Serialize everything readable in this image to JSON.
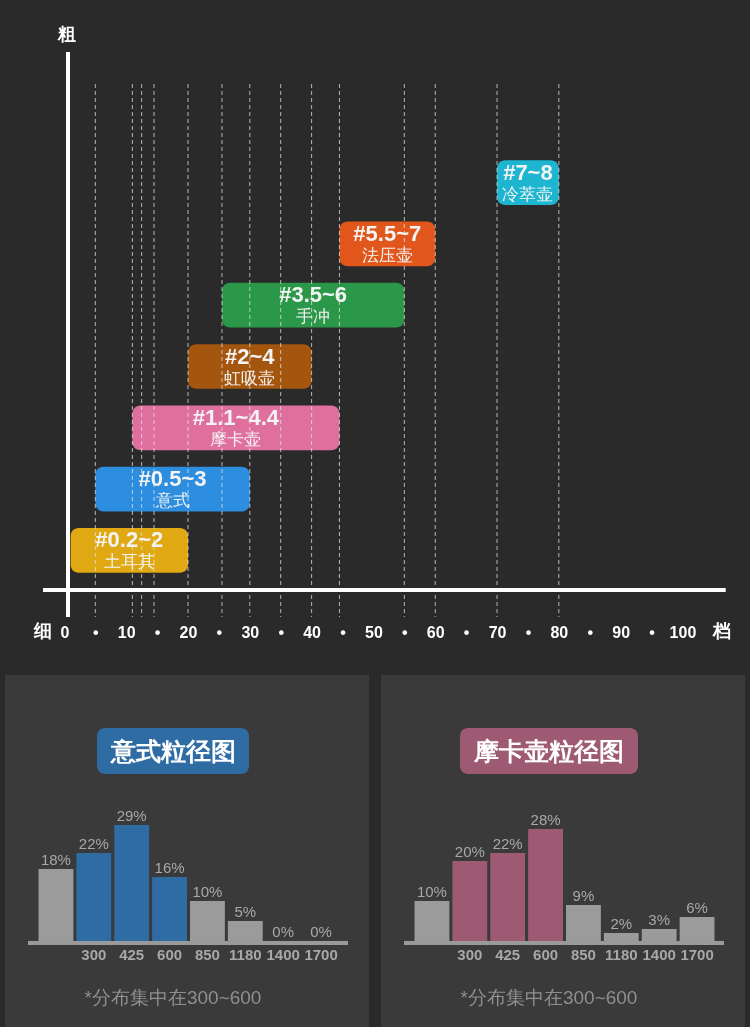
{
  "chart_data": [
    {
      "type": "bar",
      "orientation": "horizontal",
      "categories": [
        "冷萃壶",
        "法压壶",
        "手冲",
        "虹吸壶",
        "摩卡壶",
        "意式",
        "土耳其"
      ],
      "base": [
        70,
        44.5,
        25.5,
        20,
        11,
        5,
        1
      ],
      "values": [
        10,
        15.5,
        29.5,
        20,
        33.5,
        25,
        19
      ],
      "colors": [
        "#1db5d0",
        "#e0561b",
        "#2a9848",
        "#a4550e",
        "#df6f9c",
        "#2d8ddf",
        "#e0a913"
      ],
      "value_labels": [
        "#7~8",
        "#5.5~7",
        "#3.5~6",
        "#2~4",
        "#1.1~4.4",
        "#0.5~3",
        "#0.2~2"
      ],
      "xlim": [
        0,
        107
      ],
      "xticks": [
        0,
        {
          "value": 5,
          "label": "•"
        },
        10,
        {
          "value": 15,
          "label": "•"
        },
        20,
        {
          "value": 25,
          "label": "•"
        },
        30,
        {
          "value": 35,
          "label": "•"
        },
        40,
        {
          "value": 45,
          "label": "•"
        },
        50,
        {
          "value": 55,
          "label": "•"
        },
        60,
        {
          "value": 65,
          "label": "•"
        },
        70,
        {
          "value": 75,
          "label": "•"
        },
        80,
        {
          "value": 85,
          "label": "•"
        },
        90,
        {
          "value": 95,
          "label": "•"
        },
        100
      ],
      "xlabel": "档",
      "ylabel": "粗",
      "annotations": [
        "细"
      ],
      "tick_labels": "x",
      "ref_lines": [
        {
          "axis": "x",
          "value": 5,
          "color": "#e6e6e6",
          "line_style": "dashed"
        },
        {
          "axis": "x",
          "value": 11,
          "color": "#e6e6e6",
          "line_style": "dashed"
        },
        {
          "axis": "x",
          "value": 12.5,
          "color": "#e6e6e6",
          "line_style": "dashed"
        },
        {
          "axis": "x",
          "value": 14.5,
          "color": "#e6e6e6",
          "line_style": "dashed"
        },
        {
          "axis": "x",
          "value": 20,
          "color": "#e6e6e6",
          "line_style": "dashed"
        },
        {
          "axis": "x",
          "value": 25.5,
          "color": "#e6e6e6",
          "line_style": "dashed"
        },
        {
          "axis": "x",
          "value": 30,
          "color": "#e6e6e6",
          "line_style": "dashed"
        },
        {
          "axis": "x",
          "value": 35,
          "color": "#e6e6e6",
          "line_style": "dashed"
        },
        {
          "axis": "x",
          "value": 40,
          "color": "#e6e6e6",
          "line_style": "dashed"
        },
        {
          "axis": "x",
          "value": 44.5,
          "color": "#e6e6e6",
          "line_style": "dashed"
        },
        {
          "axis": "x",
          "value": 55,
          "color": "#e6e6e6",
          "line_style": "dashed"
        },
        {
          "axis": "x",
          "value": 60,
          "color": "#e6e6e6",
          "line_style": "dashed"
        },
        {
          "axis": "x",
          "value": 70,
          "color": "#e6e6e6",
          "line_style": "dashed"
        },
        {
          "axis": "x",
          "value": 80,
          "color": "#e6e6e6",
          "line_style": "dashed"
        }
      ]
    },
    {
      "type": "bar",
      "title": "意式粒径图",
      "categories": [
        null,
        "300",
        "425",
        "600",
        "850",
        "1180",
        "1400",
        "1700"
      ],
      "values": [
        18,
        22,
        29,
        16,
        10,
        5,
        0,
        0
      ],
      "value_labels": [
        "18%",
        "22%",
        "29%",
        "16%",
        "10%",
        "5%",
        "0%",
        "0%"
      ],
      "colors": [
        "#9b9b9b",
        "#2f6ca3",
        "#2f6ca3",
        "#2f6ca3",
        "#9b9b9b",
        "#9b9b9b",
        "#9b9b9b",
        "#9b9b9b"
      ],
      "annotations": [
        "*分布集中在300~600"
      ],
      "tick_labels": "x"
    },
    {
      "type": "bar",
      "title": "摩卡壶粒径图",
      "categories": [
        null,
        "300",
        "425",
        "600",
        "850",
        "1180",
        "1400",
        "1700"
      ],
      "values": [
        10,
        20,
        22,
        28,
        9,
        2,
        3,
        6
      ],
      "value_labels": [
        "10%",
        "20%",
        "22%",
        "28%",
        "9%",
        "2%",
        "3%",
        "6%"
      ],
      "colors": [
        "#9b9b9b",
        "#9e5a72",
        "#9e5a72",
        "#9e5a72",
        "#9b9b9b",
        "#9b9b9b",
        "#9b9b9b",
        "#9b9b9b"
      ],
      "annotations": [
        "*分布集中在300~600"
      ],
      "tick_labels": "x"
    }
  ]
}
